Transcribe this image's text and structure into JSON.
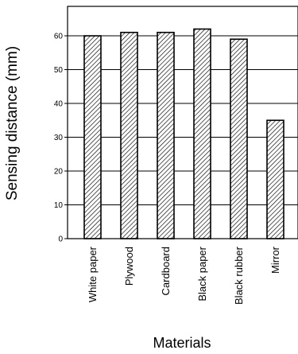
{
  "chart_data": {
    "type": "bar",
    "categories": [
      "White paper",
      "Plywood",
      "Cardboard",
      "Black paper",
      "Black rubber",
      "Mirror"
    ],
    "values": [
      60,
      61,
      61,
      62,
      59,
      35
    ],
    "xlabel": "Materials",
    "ylabel": "Sensing distance  (mm)",
    "ylim": [
      0,
      70
    ],
    "yticks": [
      0,
      10,
      20,
      30,
      40,
      50,
      60
    ],
    "grid": true,
    "bar_fill": "hatched"
  }
}
